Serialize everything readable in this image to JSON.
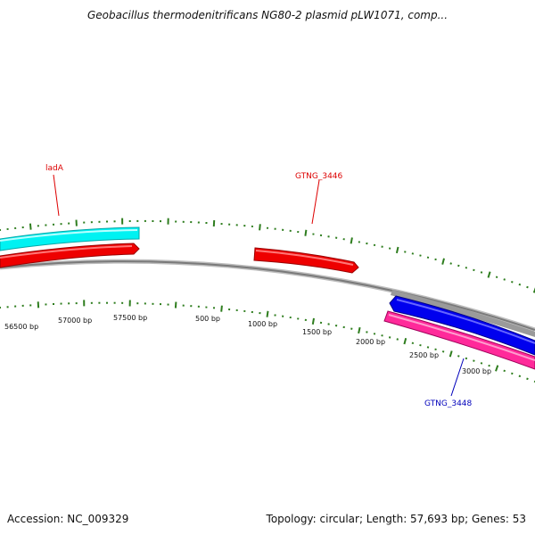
{
  "title": "Geobacillus thermodenitrificans NG80-2 plasmid pLW1071, comp...",
  "footer": {
    "accession": "Accession: NC_009329",
    "summary": "Topology: circular; Length: 57,693 bp; Genes: 53"
  },
  "genes": {
    "ladA": "ladA",
    "gtng_3446": "GTNG_3446",
    "gtng_3448": "GTNG_3448"
  },
  "ticks": {
    "t56500": "56500 bp",
    "t57000": "57000 bp",
    "t57500": "57500 bp",
    "t500": "500 bp",
    "t1000": "1000 bp",
    "t1500": "1500 bp",
    "t2000": "2000 bp",
    "t2500": "2500 bp",
    "t3000": "3000 bp"
  },
  "colors": {
    "cyan_feature": "#00f2f2",
    "red_feature": "#ee0000",
    "blue_feature": "#0000ee",
    "pink_feature": "#ff2a9a",
    "backbone": "#8a8a8a",
    "tick": "#2e7d1e",
    "label_red": "#dd0000",
    "label_blue": "#0000bb"
  }
}
